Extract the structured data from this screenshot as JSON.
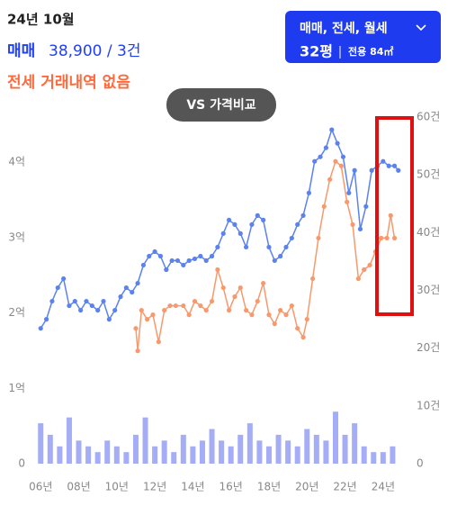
{
  "header": {
    "month": "24년 10월",
    "sale_label": "매매",
    "sale_value": "38,900 / 3건",
    "jeonse_status": "전세 거래내역 없음"
  },
  "filter": {
    "deal_types": "매매, 전세, 월세",
    "size": "32평",
    "area": "전용 84㎡"
  },
  "compare_button": "VS 가격비교",
  "chart_data": {
    "type": "line",
    "xlim": [
      5.8,
      25
    ],
    "ylim": [
      0,
      46000
    ],
    "y2lim": [
      0,
      60
    ],
    "xticks": [
      {
        "value": 6,
        "label": "06년"
      },
      {
        "value": 8,
        "label": "08년"
      },
      {
        "value": 10,
        "label": "10년"
      },
      {
        "value": 12,
        "label": "12년"
      },
      {
        "value": 14,
        "label": "14년"
      },
      {
        "value": 16,
        "label": "16년"
      },
      {
        "value": 18,
        "label": "18년"
      },
      {
        "value": 20,
        "label": "20년"
      },
      {
        "value": 22,
        "label": "22년"
      },
      {
        "value": 24,
        "label": "24년"
      }
    ],
    "yticks": [
      0,
      {
        "value": 10000,
        "label": "1억"
      },
      {
        "value": 20000,
        "label": "2억"
      },
      {
        "value": 30000,
        "label": "3억"
      },
      {
        "value": 40000,
        "label": "4억"
      }
    ],
    "y2ticks": [
      0,
      {
        "value": 10,
        "label": "10건"
      },
      {
        "value": 20,
        "label": "20건"
      },
      {
        "value": 30,
        "label": "30건"
      },
      {
        "value": 40,
        "label": "40건"
      },
      {
        "value": 50,
        "label": "50건"
      },
      {
        "value": 60,
        "label": "60건"
      }
    ],
    "grid": false,
    "series": [
      {
        "type": "line",
        "color": "#5b82ee",
        "x": [
          6.0,
          6.3,
          6.6,
          6.9,
          7.2,
          7.5,
          7.8,
          8.1,
          8.4,
          8.7,
          9.0,
          9.3,
          9.6,
          9.9,
          10.2,
          10.5,
          10.8,
          11.1,
          11.4,
          11.7,
          12.0,
          12.3,
          12.6,
          12.9,
          13.2,
          13.5,
          13.8,
          14.1,
          14.4,
          14.7,
          15.0,
          15.3,
          15.6,
          15.9,
          16.2,
          16.5,
          16.8,
          17.1,
          17.4,
          17.7,
          18.0,
          18.3,
          18.6,
          18.9,
          19.2,
          19.5,
          19.8,
          20.1,
          20.4,
          20.7,
          21.0,
          21.3,
          21.6,
          21.9,
          22.2,
          22.5,
          22.8,
          23.1,
          23.4,
          23.7,
          24.0,
          24.3,
          24.6,
          24.8
        ],
        "values": [
          17960,
          19160,
          21560,
          23350,
          24550,
          20960,
          21560,
          20360,
          21560,
          20960,
          20360,
          21560,
          19160,
          20360,
          22160,
          23350,
          22750,
          23950,
          26350,
          27540,
          28140,
          27540,
          25750,
          26950,
          26950,
          26350,
          26950,
          27190,
          27540,
          26950,
          27540,
          28740,
          30540,
          32330,
          31740,
          30540,
          28740,
          31740,
          32930,
          32330,
          28740,
          26950,
          27540,
          28740,
          29940,
          31740,
          32930,
          35930,
          40120,
          40720,
          41920,
          44310,
          42510,
          40720,
          35930,
          38920,
          31140,
          34130,
          38920,
          39520,
          40120,
          39520,
          39520,
          38920
        ]
      },
      {
        "type": "line",
        "color": "#f7996c",
        "x": [
          11.0,
          11.1,
          11.3,
          11.6,
          11.9,
          12.2,
          12.5,
          12.8,
          13.1,
          13.5,
          13.8,
          14.1,
          14.4,
          14.7,
          15.0,
          15.3,
          15.6,
          15.9,
          16.2,
          16.5,
          16.8,
          17.1,
          17.4,
          17.7,
          18.0,
          18.3,
          18.6,
          18.9,
          19.2,
          19.5,
          19.8,
          20.0,
          20.3,
          20.6,
          20.9,
          21.2,
          21.5,
          21.8,
          22.1,
          22.4,
          22.7,
          23.0,
          23.3,
          23.6,
          23.9,
          24.2,
          24.4,
          24.6
        ],
        "values": [
          17960,
          14970,
          20360,
          19160,
          19760,
          16170,
          20360,
          20960,
          20960,
          20960,
          19760,
          21560,
          20960,
          20360,
          21560,
          25750,
          23350,
          20360,
          22160,
          23350,
          20360,
          19760,
          21560,
          23950,
          19760,
          18560,
          20360,
          19760,
          20960,
          17960,
          16770,
          19160,
          24550,
          29940,
          34130,
          37720,
          40120,
          39520,
          34730,
          31740,
          24550,
          25750,
          26350,
          28140,
          29940,
          29940,
          32930,
          29940
        ]
      },
      {
        "type": "bar",
        "axis": "y2",
        "color": "#8d98f4",
        "x": [
          6.0,
          6.5,
          7.0,
          7.5,
          8.0,
          8.5,
          9.0,
          9.5,
          10.0,
          10.5,
          11.0,
          11.5,
          12.0,
          12.5,
          13.0,
          13.5,
          14.0,
          14.5,
          15.0,
          15.5,
          16.0,
          16.5,
          17.0,
          17.5,
          18.0,
          18.5,
          19.0,
          19.5,
          20.0,
          20.5,
          21.0,
          21.5,
          22.0,
          22.5,
          23.0,
          23.5,
          24.0,
          24.5
        ],
        "values": [
          7,
          5,
          3,
          8,
          4,
          3,
          2,
          4,
          3,
          2,
          5,
          8,
          3,
          4,
          2,
          5,
          3,
          4,
          6,
          4,
          3,
          5,
          7,
          4,
          3,
          5,
          4,
          3,
          6,
          5,
          4,
          9,
          5,
          7,
          3,
          2,
          2,
          3
        ]
      }
    ]
  }
}
